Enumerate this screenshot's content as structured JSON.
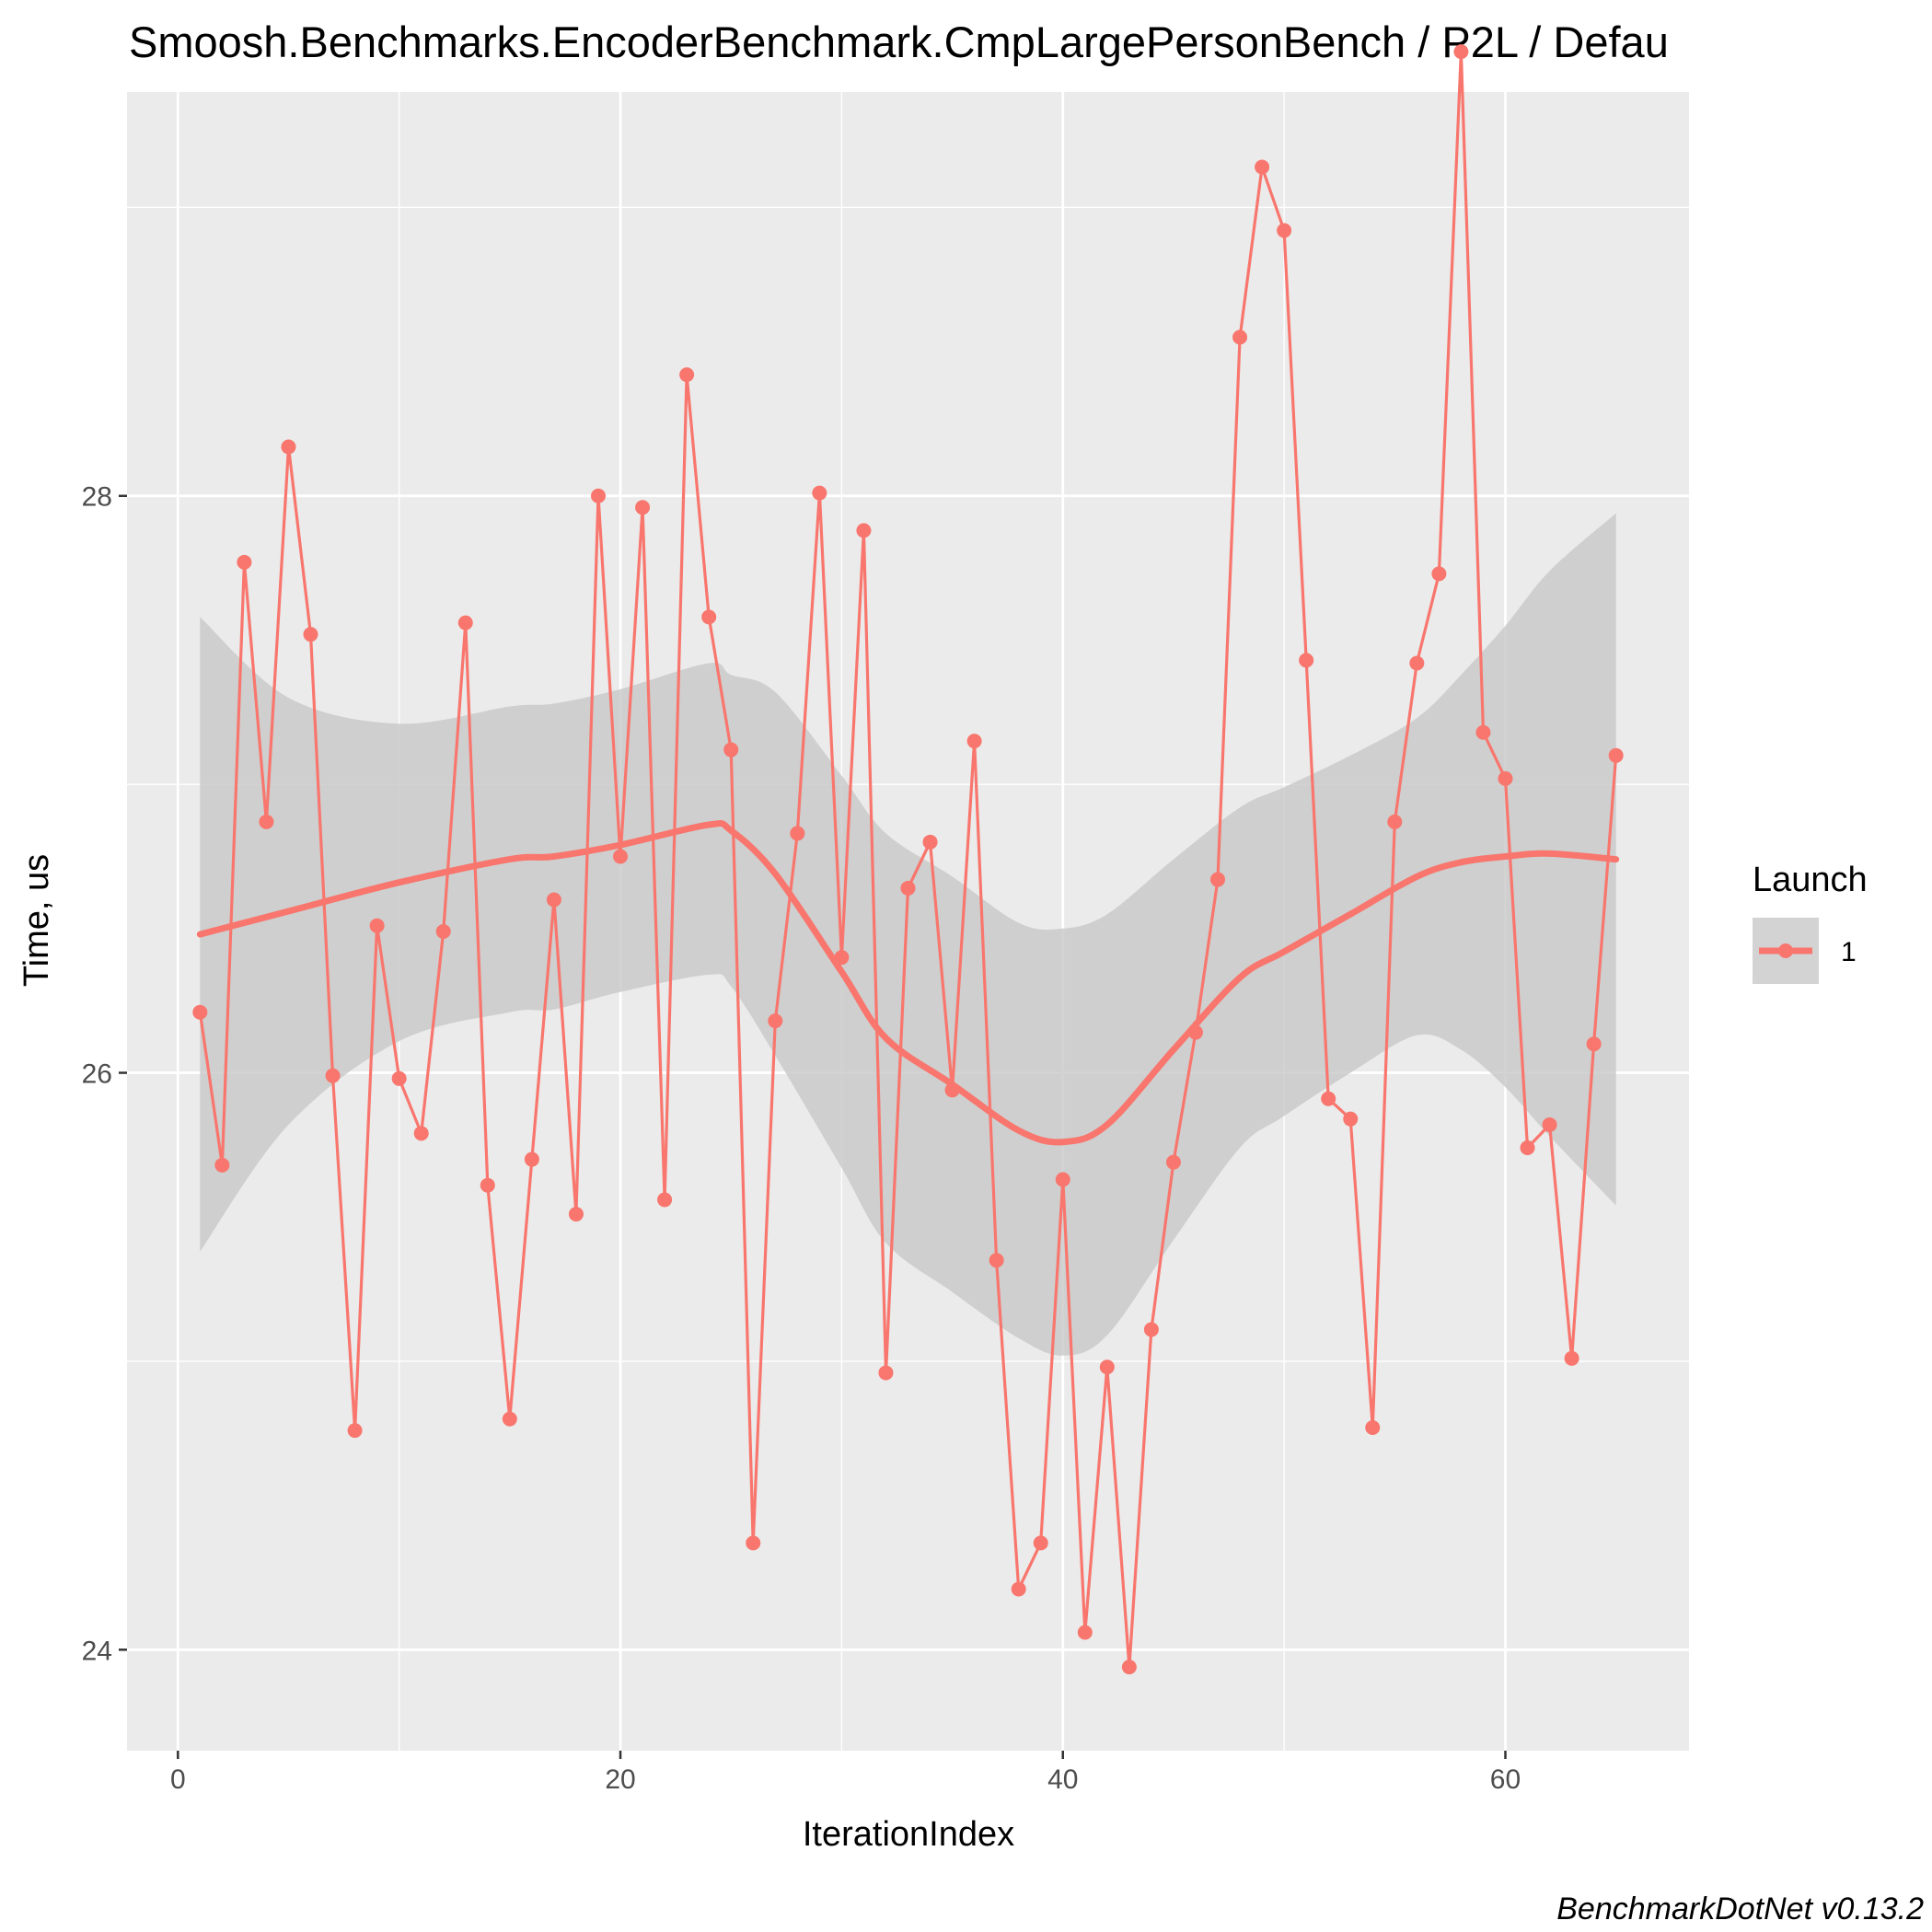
{
  "chart_data": {
    "type": "line",
    "title": "Smoosh.Benchmarks.EncoderBenchmark.CmpLargePersonBench / P2L / Defau",
    "xlabel": "IterationIndex",
    "ylabel": "Time, us",
    "caption": "BenchmarkDotNet v0.13.2",
    "xlim": [
      -2.3,
      68.3
    ],
    "ylim": [
      23.65,
      29.4
    ],
    "x_ticks": [
      0,
      20,
      40,
      60
    ],
    "x_tick_labels": [
      "0",
      "20",
      "40",
      "60"
    ],
    "y_ticks": [
      24,
      26,
      28
    ],
    "y_tick_labels": [
      "24",
      "26",
      "28"
    ],
    "grid": true,
    "legend": {
      "title": "Launch",
      "position": "right",
      "entries": [
        "1"
      ]
    },
    "colors": {
      "series": "#f8766d",
      "ribbon": "#c8c8c8",
      "panel": "#ebebeb",
      "grid": "#ffffff"
    },
    "series": [
      {
        "name": "1",
        "x": [
          1,
          2,
          3,
          4,
          5,
          6,
          7,
          8,
          9,
          10,
          11,
          12,
          13,
          14,
          15,
          16,
          17,
          18,
          19,
          20,
          21,
          22,
          23,
          24,
          25,
          26,
          27,
          28,
          29,
          30,
          31,
          32,
          33,
          34,
          35,
          36,
          37,
          38,
          39,
          40,
          41,
          42,
          43,
          44,
          45,
          46,
          47,
          48,
          49,
          50,
          51,
          52,
          53,
          54,
          55,
          56,
          57,
          58,
          59,
          60,
          61,
          62,
          63,
          64,
          65
        ],
        "y": [
          26.21,
          25.68,
          27.77,
          26.87,
          28.17,
          27.52,
          25.99,
          24.76,
          26.51,
          25.98,
          25.79,
          26.49,
          27.56,
          25.61,
          24.8,
          25.7,
          26.6,
          25.51,
          28.0,
          26.75,
          27.96,
          25.56,
          28.42,
          27.58,
          27.12,
          24.37,
          26.18,
          26.83,
          28.01,
          26.4,
          27.88,
          24.96,
          26.64,
          26.8,
          25.94,
          27.15,
          25.35,
          24.21,
          24.37,
          25.63,
          24.06,
          24.98,
          23.94,
          25.11,
          25.69,
          26.14,
          26.67,
          28.55,
          29.14,
          28.92,
          27.43,
          25.91,
          25.84,
          24.77,
          26.87,
          27.42,
          27.73,
          29.54,
          27.18,
          27.02,
          25.74,
          25.82,
          25.01,
          26.1,
          27.1
        ]
      }
    ],
    "smooth": {
      "x": [
        1,
        5,
        10,
        15,
        17,
        20,
        24,
        25,
        27,
        30,
        32,
        35,
        38,
        40,
        42,
        45,
        48,
        50,
        53,
        56,
        58,
        60,
        62,
        65
      ],
      "y": [
        26.48,
        26.56,
        26.66,
        26.74,
        26.75,
        26.79,
        26.86,
        26.84,
        26.69,
        26.35,
        26.12,
        25.96,
        25.8,
        25.76,
        25.82,
        26.08,
        26.33,
        26.42,
        26.55,
        26.68,
        26.73,
        26.75,
        26.76,
        26.74
      ],
      "lower": [
        25.38,
        25.82,
        26.11,
        26.21,
        26.22,
        26.28,
        26.34,
        26.3,
        26.06,
        25.67,
        25.41,
        25.24,
        25.08,
        25.02,
        25.09,
        25.42,
        25.74,
        25.85,
        26.0,
        26.13,
        26.08,
        25.95,
        25.78,
        25.54
      ],
      "upper": [
        27.58,
        27.3,
        27.21,
        27.27,
        27.28,
        27.33,
        27.42,
        27.38,
        27.32,
        27.03,
        26.83,
        26.68,
        26.52,
        26.5,
        26.55,
        26.74,
        26.92,
        26.99,
        27.1,
        27.23,
        27.38,
        27.55,
        27.74,
        27.94
      ]
    }
  }
}
